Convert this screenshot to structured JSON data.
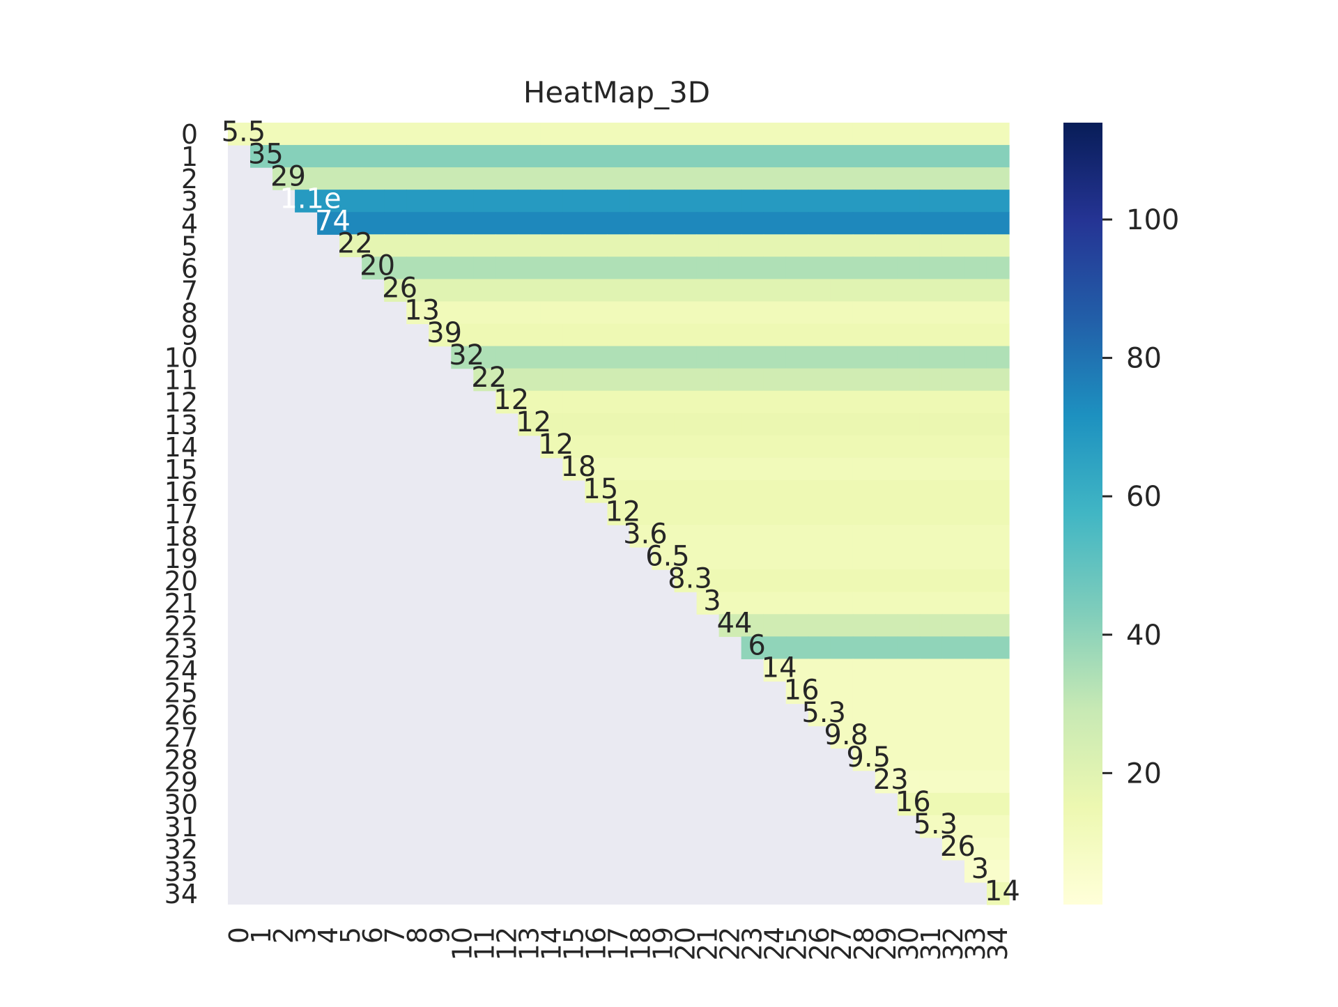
{
  "chart_data": {
    "type": "heatmap",
    "title": "HeatMap_3D",
    "xlabel": "",
    "ylabel": "",
    "x_categories": [
      "0",
      "1",
      "2",
      "3",
      "4",
      "5",
      "6",
      "7",
      "8",
      "9",
      "10",
      "11",
      "12",
      "13",
      "14",
      "15",
      "16",
      "17",
      "18",
      "19",
      "20",
      "21",
      "22",
      "23",
      "24",
      "25",
      "26",
      "27",
      "28",
      "29",
      "30",
      "31",
      "32",
      "33",
      "34"
    ],
    "y_categories": [
      "0",
      "1",
      "2",
      "3",
      "4",
      "5",
      "6",
      "7",
      "8",
      "9",
      "10",
      "11",
      "12",
      "13",
      "14",
      "15",
      "16",
      "17",
      "18",
      "19",
      "20",
      "21",
      "22",
      "23",
      "24",
      "25",
      "26",
      "27",
      "28",
      "29",
      "30",
      "31",
      "32",
      "33",
      "34"
    ],
    "mask": "lower-triangle",
    "colorbar": {
      "min": 1,
      "max": 114,
      "ticks": [
        20,
        40,
        60,
        80,
        100
      ],
      "palette": [
        "#ffffd9",
        "#edf8b1",
        "#c7e9b4",
        "#7fcdbb",
        "#41b6c4",
        "#1d91c0",
        "#225ea8",
        "#253494",
        "#081d58"
      ]
    },
    "mask_color": "#eaeaf2",
    "row_levels": [
      12,
      42,
      28,
      68,
      74,
      18,
      34,
      20,
      12,
      14,
      34,
      26,
      14,
      16,
      14,
      12,
      14,
      14,
      12,
      12,
      14,
      12,
      26,
      40,
      10,
      10,
      10,
      10,
      10,
      8,
      14,
      10,
      8,
      6,
      14
    ],
    "first_cells": [
      "5.5",
      "35",
      "29",
      "1.1e",
      "74",
      "22",
      "20",
      "26",
      "13",
      "39",
      "32",
      "22",
      "12",
      "12",
      "12",
      "18",
      "15",
      "12",
      "3.6",
      "6.5",
      "8.3",
      "3",
      "44",
      "6",
      "14",
      "16",
      "5.3",
      "9.8",
      "9.5",
      "23",
      "16",
      "5.3",
      "26",
      "3",
      "14"
    ]
  }
}
